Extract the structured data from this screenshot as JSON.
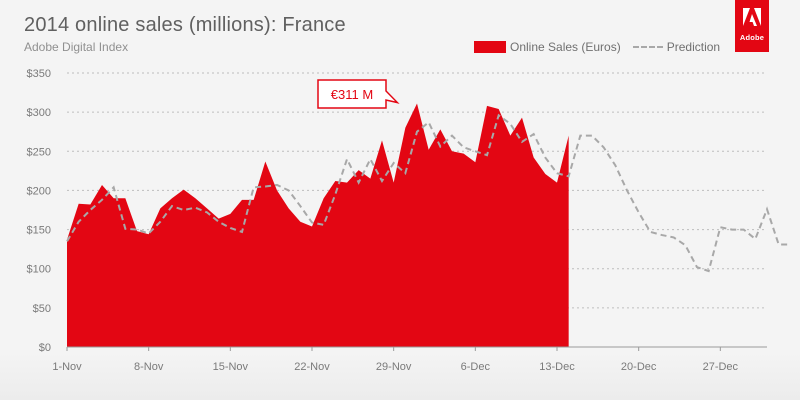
{
  "header": {
    "title": "2014 online sales (millions): France",
    "subtitle": "Adobe Digital Index",
    "logo_text": "Adobe"
  },
  "colors": {
    "sales_fill": "#e30613",
    "prediction_line": "#a8a8a8",
    "grid": "#bdbdbd"
  },
  "chart_data": {
    "type": "area",
    "title": "2014 online sales (millions): France",
    "xlabel": "",
    "ylabel": "",
    "ylim": [
      0,
      350
    ],
    "y_ticks": [
      0,
      50,
      100,
      150,
      200,
      250,
      300,
      350
    ],
    "y_tick_labels": [
      "$0",
      "$50",
      "$100",
      "$150",
      "$200",
      "$250",
      "$300",
      "$350"
    ],
    "x_ticks": [
      "1-Nov",
      "8-Nov",
      "15-Nov",
      "22-Nov",
      "29-Nov",
      "6-Dec",
      "13-Dec",
      "20-Dec",
      "27-Dec"
    ],
    "x_start": "1-Nov",
    "x_end": "31-Dec",
    "grid": "horizontal dotted",
    "legend_position": "top-right",
    "series": [
      {
        "name": "Online Sales (Euros)",
        "type": "area",
        "start": "1-Nov",
        "values": [
          137,
          183,
          182,
          207,
          190,
          190,
          148,
          144,
          177,
          190,
          201,
          190,
          177,
          164,
          170,
          188,
          188,
          237,
          200,
          177,
          160,
          154,
          190,
          212,
          210,
          226,
          215,
          264,
          210,
          280,
          311,
          252,
          278,
          250,
          247,
          236,
          308,
          304,
          270,
          293,
          242,
          221,
          210,
          270
        ]
      },
      {
        "name": "Prediction",
        "type": "line",
        "start": "1-Nov",
        "values": [
          135,
          160,
          175,
          188,
          204,
          151,
          150,
          145,
          160,
          180,
          175,
          178,
          172,
          160,
          152,
          147,
          204,
          205,
          207,
          200,
          180,
          159,
          156,
          195,
          240,
          210,
          240,
          212,
          235,
          222,
          275,
          287,
          256,
          270,
          255,
          250,
          245,
          296,
          285,
          262,
          272,
          242,
          222,
          218,
          270,
          270,
          255,
          232,
          200,
          172,
          147,
          143,
          140,
          130,
          102,
          97,
          153,
          150,
          150,
          138,
          176,
          131,
          131
        ]
      }
    ],
    "annotations": [
      {
        "label": "€311 M",
        "x": "30-Nov",
        "y": 311
      }
    ]
  }
}
